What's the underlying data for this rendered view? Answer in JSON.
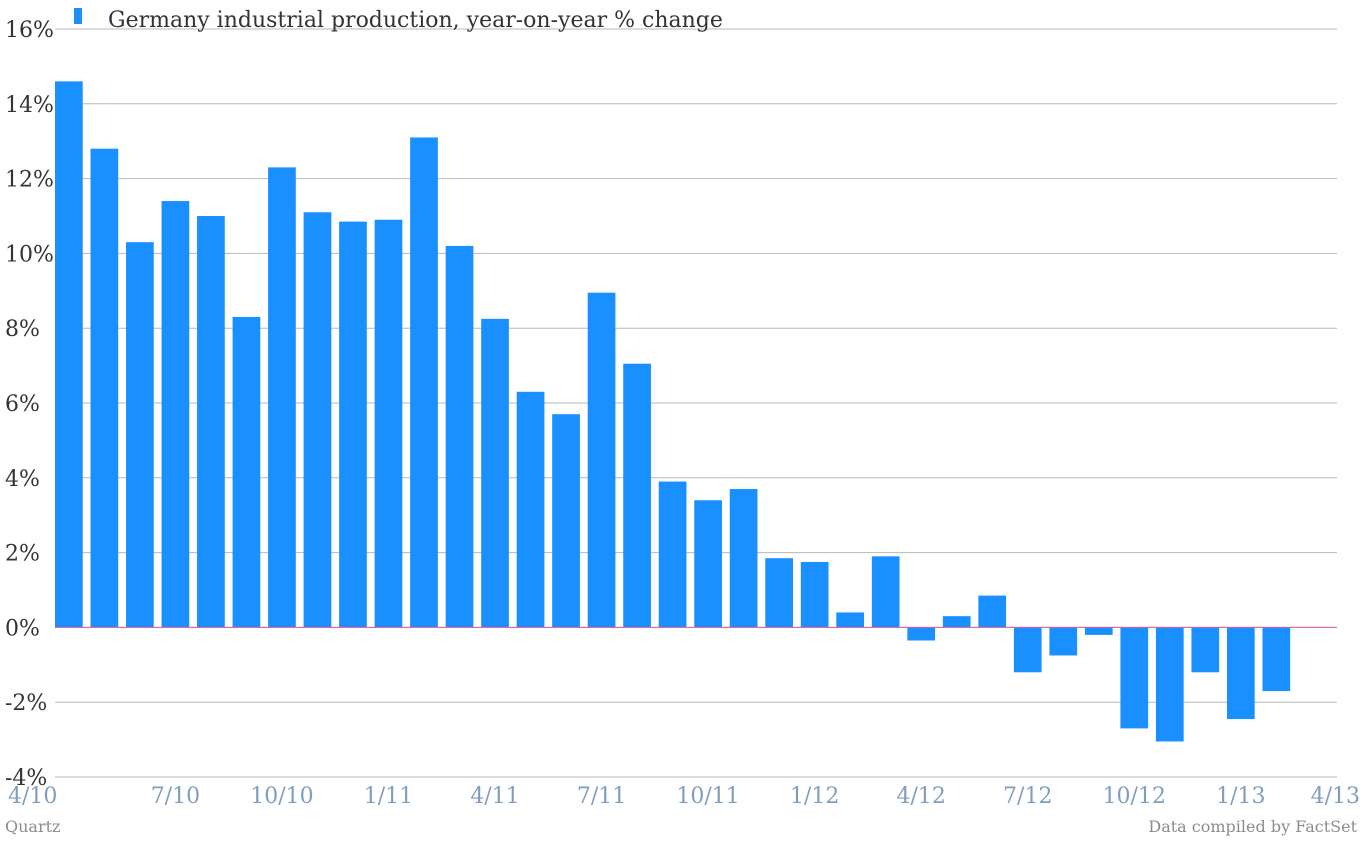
{
  "chart_data": {
    "type": "bar",
    "series": [
      {
        "name": "Germany industrial production, year-on-year % change",
        "color": "#1a8fff",
        "values": [
          14.6,
          12.8,
          10.3,
          11.4,
          11.0,
          8.3,
          12.3,
          11.1,
          10.85,
          10.9,
          13.1,
          10.2,
          8.25,
          6.3,
          5.7,
          8.95,
          7.05,
          3.9,
          3.4,
          3.7,
          1.85,
          1.75,
          0.4,
          1.9,
          -0.35,
          0.3,
          0.85,
          -1.2,
          -0.75,
          -0.2,
          -2.7,
          -3.05,
          -1.2,
          -2.45,
          -1.7
        ]
      }
    ],
    "x_labels": [
      "4/10",
      "7/10",
      "10/10",
      "1/11",
      "4/11",
      "7/11",
      "10/11",
      "1/12",
      "4/12",
      "7/12",
      "10/12",
      "1/13",
      "4/13"
    ],
    "y_ticks": [
      "16%",
      "14%",
      "12%",
      "10%",
      "8%",
      "6%",
      "4%",
      "2%",
      "0%",
      "-2%",
      "-4%"
    ],
    "ylim": [
      -4,
      16
    ],
    "grid": true,
    "zero_line_color": "#e05c9a",
    "legend_position": "top-left",
    "title": "",
    "xlabel": "",
    "ylabel": ""
  },
  "footer": {
    "source_left": "Quartz",
    "source_right": "Data compiled by FactSet"
  }
}
